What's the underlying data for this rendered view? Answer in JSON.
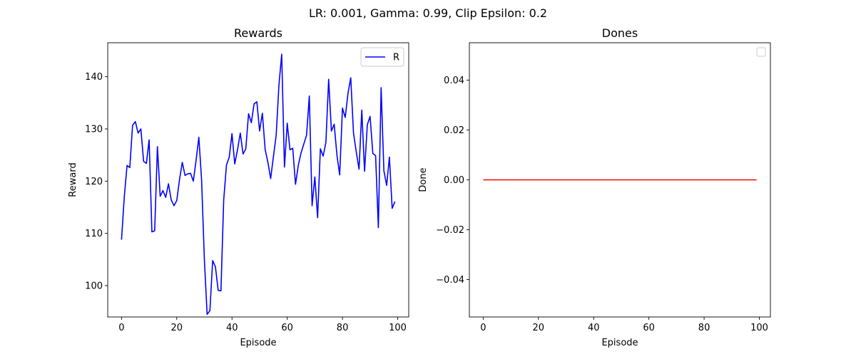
{
  "suptitle": "LR: 0.001, Gamma: 0.99, Clip Epsilon: 0.2",
  "chart_data": [
    {
      "type": "line",
      "title": "Rewards",
      "xlabel": "Episode",
      "ylabel": "Reward",
      "xlim": [
        -5,
        104
      ],
      "ylim": [
        94,
        146.5
      ],
      "xticks": [
        0,
        20,
        40,
        60,
        80,
        100
      ],
      "yticks": [
        100,
        110,
        120,
        130,
        140
      ],
      "ytick_labels": [
        "100",
        "110",
        "120",
        "130",
        "140"
      ],
      "grid": false,
      "legend": {
        "position": "top-right",
        "entries": [
          {
            "label": "R",
            "color": "#0000ff"
          }
        ]
      },
      "series": [
        {
          "name": "R",
          "color": "#0000ff",
          "x": [
            0,
            1,
            2,
            3,
            4,
            5,
            6,
            7,
            8,
            9,
            10,
            11,
            12,
            13,
            14,
            15,
            16,
            17,
            18,
            19,
            20,
            21,
            22,
            23,
            24,
            25,
            26,
            27,
            28,
            29,
            30,
            31,
            32,
            33,
            34,
            35,
            36,
            37,
            38,
            39,
            40,
            41,
            42,
            43,
            44,
            45,
            46,
            47,
            48,
            49,
            50,
            51,
            52,
            53,
            54,
            55,
            56,
            57,
            58,
            59,
            60,
            61,
            62,
            63,
            64,
            65,
            66,
            67,
            68,
            69,
            70,
            71,
            72,
            73,
            74,
            75,
            76,
            77,
            78,
            79,
            80,
            81,
            82,
            83,
            84,
            85,
            86,
            87,
            88,
            89,
            90,
            91,
            92,
            93,
            94,
            95,
            96,
            97,
            98,
            99
          ],
          "values": [
            108.8,
            117.0,
            123.0,
            122.6,
            130.7,
            131.4,
            129.2,
            130.0,
            123.8,
            123.4,
            127.9,
            110.3,
            110.5,
            126.6,
            117.1,
            118.2,
            116.9,
            119.5,
            116.4,
            115.3,
            116.3,
            120.3,
            123.6,
            121.1,
            121.4,
            121.5,
            120.0,
            124.0,
            128.4,
            120.2,
            105.0,
            94.5,
            95.2,
            104.8,
            103.6,
            99.1,
            99.0,
            116.4,
            123.1,
            124.6,
            129.1,
            123.3,
            126.0,
            129.2,
            125.2,
            126.2,
            132.9,
            131.2,
            134.8,
            135.2,
            129.6,
            133.0,
            126.1,
            123.6,
            120.5,
            124.7,
            128.8,
            138.4,
            144.3,
            122.7,
            131.1,
            126.0,
            126.3,
            119.4,
            123.0,
            125.4,
            127.1,
            128.8,
            136.3,
            115.3,
            120.8,
            113.0,
            126.2,
            124.8,
            127.4,
            139.5,
            129.6,
            130.9,
            125.0,
            121.2,
            134.0,
            132.2,
            136.8,
            139.8,
            129.2,
            125.6,
            122.3,
            133.6,
            121.9,
            130.8,
            132.4,
            125.3,
            124.9,
            111.1,
            137.9,
            122.0,
            119.2,
            124.6,
            114.8,
            116.1
          ]
        }
      ]
    },
    {
      "type": "line",
      "title": "Dones",
      "xlabel": "Episode",
      "ylabel": "Done",
      "xlim": [
        -5,
        104
      ],
      "ylim": [
        -0.055,
        0.055
      ],
      "xticks": [
        0,
        20,
        40,
        60,
        80,
        100
      ],
      "yticks": [
        -0.04,
        -0.02,
        0.0,
        0.02,
        0.04
      ],
      "ytick_labels": [
        "−0.04",
        "−0.02",
        "0.00",
        "0.02",
        "0.04"
      ],
      "grid": false,
      "legend": {
        "position": "top-right",
        "entries": []
      },
      "series": [
        {
          "color": "#ff0000",
          "x": [
            0,
            99
          ],
          "values": [
            0,
            0
          ]
        }
      ]
    }
  ]
}
